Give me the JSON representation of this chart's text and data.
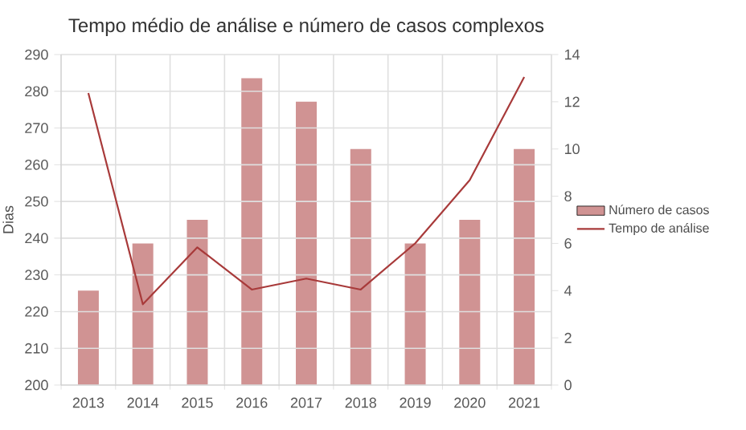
{
  "chart_data": {
    "type": "bar",
    "title": "Tempo médio de análise e número de casos complexos",
    "ylabel": "Dias",
    "categories": [
      "2013",
      "2014",
      "2015",
      "2016",
      "2017",
      "2018",
      "2019",
      "2020",
      "2021"
    ],
    "series": [
      {
        "name": "Número de casos",
        "axis": "y2",
        "color": "#d09393",
        "values": [
          4,
          6,
          7,
          13,
          12,
          10,
          6,
          7,
          10
        ]
      },
      {
        "name": "Tempo de análise",
        "type": "line",
        "color": "#a83a3a",
        "values": [
          279.5,
          222,
          237.5,
          226,
          229,
          226,
          238.6,
          255.8,
          283.9
        ]
      }
    ],
    "ylim": [
      200,
      290
    ],
    "yticks": [
      200,
      210,
      220,
      230,
      240,
      250,
      260,
      270,
      280,
      290
    ],
    "y2lim": [
      0,
      14
    ],
    "y2ticks": [
      0,
      2,
      4,
      6,
      8,
      10,
      12,
      14
    ],
    "grid": true,
    "legend": "right"
  }
}
